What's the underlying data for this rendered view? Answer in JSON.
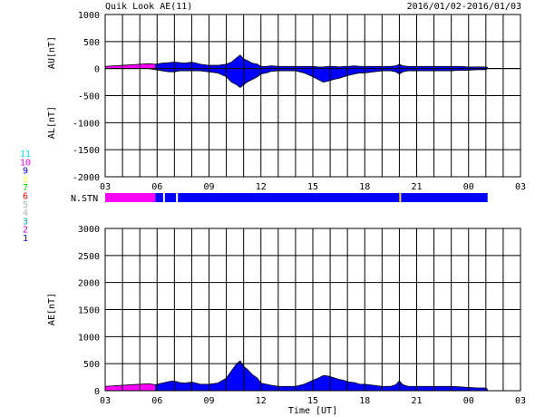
{
  "header": {
    "title": "Quik Look AE(11)",
    "date_range": "2016/01/02-2016/01/03"
  },
  "colors": {
    "magenta": "#ff00ff",
    "blue": "#0000ff",
    "yellow": "#ffd700",
    "white": "#ffffff",
    "black": "#000000"
  },
  "station_legend": [
    {
      "label": "11",
      "color": "#00e5e5"
    },
    {
      "label": "10",
      "color": "#ff00ff"
    },
    {
      "label": "9",
      "color": "#0000ff"
    },
    {
      "label": "8",
      "color": "#ffff66"
    },
    {
      "label": "7",
      "color": "#00dd00"
    },
    {
      "label": "6",
      "color": "#ff0000"
    },
    {
      "label": "5",
      "color": "#b4b4b4"
    },
    {
      "label": "4",
      "color": "#b4b4b4"
    },
    {
      "label": "3",
      "color": "#00aaaa"
    },
    {
      "label": "2",
      "color": "#cc00cc"
    },
    {
      "label": "1",
      "color": "#0000cc"
    }
  ],
  "nstn_label": "N.STN",
  "nstn_segments": [
    {
      "start": 3.0,
      "end": 5.9,
      "color": "#ff00ff"
    },
    {
      "start": 5.9,
      "end": 6.35,
      "color": "#0000ff"
    },
    {
      "start": 6.35,
      "end": 6.45,
      "color": "#ffffff"
    },
    {
      "start": 6.45,
      "end": 7.1,
      "color": "#0000ff"
    },
    {
      "start": 7.1,
      "end": 7.2,
      "color": "#ffffff"
    },
    {
      "start": 7.2,
      "end": 20.0,
      "color": "#0000ff"
    },
    {
      "start": 20.0,
      "end": 20.1,
      "color": "#ffd700"
    },
    {
      "start": 20.1,
      "end": 25.1,
      "color": "#0000ff"
    }
  ],
  "xlabel": "Time [UT]",
  "x_tick_labels": [
    "03",
    "06",
    "09",
    "12",
    "15",
    "18",
    "21",
    "00",
    "03"
  ],
  "chart_data": [
    {
      "type": "area",
      "name": "AU/AL",
      "ylabel_top": "AU[nT]",
      "ylabel_bottom": "AL[nT]",
      "ylim": [
        -2000,
        1000
      ],
      "y_ticks": [
        "1000",
        "500",
        "0",
        "-500",
        "-1000",
        "-1500",
        "-2000"
      ],
      "xlim": [
        3,
        27
      ],
      "data_end": 25.1,
      "grid": true,
      "x": [
        3.0,
        3.5,
        4.0,
        4.5,
        5.0,
        5.5,
        5.9,
        6.3,
        6.7,
        7.0,
        7.3,
        7.6,
        8.0,
        8.5,
        9.0,
        9.5,
        10.0,
        10.3,
        10.6,
        10.8,
        11.0,
        11.2,
        11.5,
        11.8,
        12.0,
        12.3,
        12.6,
        13.0,
        13.5,
        14.0,
        14.5,
        15.0,
        15.3,
        15.6,
        15.9,
        16.2,
        16.5,
        16.8,
        17.1,
        17.4,
        17.7,
        18.0,
        18.5,
        19.0,
        19.5,
        19.8,
        20.0,
        20.2,
        20.5,
        21.0,
        21.5,
        22.0,
        22.5,
        23.0,
        23.5,
        24.0,
        24.5,
        25.0,
        25.1
      ],
      "au": [
        40,
        50,
        60,
        70,
        80,
        90,
        80,
        100,
        110,
        120,
        110,
        100,
        120,
        80,
        60,
        60,
        80,
        120,
        200,
        250,
        180,
        150,
        100,
        80,
        40,
        40,
        50,
        40,
        40,
        40,
        40,
        40,
        30,
        30,
        40,
        40,
        30,
        40,
        40,
        50,
        40,
        40,
        40,
        40,
        40,
        50,
        80,
        50,
        40,
        40,
        40,
        40,
        40,
        40,
        40,
        30,
        30,
        30,
        20
      ],
      "al": [
        0,
        0,
        0,
        0,
        0,
        0,
        -20,
        -40,
        -60,
        -60,
        -40,
        -40,
        -40,
        -40,
        -60,
        -80,
        -150,
        -250,
        -300,
        -350,
        -300,
        -250,
        -200,
        -150,
        -100,
        -80,
        -50,
        -40,
        -40,
        -40,
        -80,
        -150,
        -200,
        -250,
        -230,
        -200,
        -180,
        -150,
        -120,
        -100,
        -80,
        -80,
        -60,
        -40,
        -40,
        -60,
        -100,
        -60,
        -40,
        -40,
        -40,
        -40,
        -40,
        -40,
        -30,
        -30,
        -20,
        -20,
        0
      ]
    },
    {
      "type": "area",
      "name": "AE",
      "ylabel": "AE[nT]",
      "ylim": [
        0,
        3000
      ],
      "y_ticks": [
        "3000",
        "2500",
        "2000",
        "1500",
        "1000",
        "500",
        "0"
      ],
      "xlim": [
        3,
        27
      ],
      "data_end": 25.1,
      "grid": true,
      "x": [
        3.0,
        3.5,
        4.0,
        4.5,
        5.0,
        5.5,
        5.9,
        6.3,
        6.7,
        7.0,
        7.3,
        7.6,
        8.0,
        8.5,
        9.0,
        9.5,
        10.0,
        10.3,
        10.6,
        10.8,
        11.0,
        11.2,
        11.5,
        11.8,
        12.0,
        12.3,
        12.6,
        13.0,
        13.5,
        14.0,
        14.5,
        15.0,
        15.3,
        15.6,
        15.9,
        16.2,
        16.5,
        16.8,
        17.1,
        17.4,
        17.7,
        18.0,
        18.5,
        19.0,
        19.5,
        19.8,
        20.0,
        20.2,
        20.5,
        21.0,
        21.5,
        22.0,
        22.5,
        23.0,
        23.5,
        24.0,
        24.5,
        25.0,
        25.1
      ],
      "ae": [
        80,
        90,
        100,
        110,
        120,
        130,
        110,
        140,
        170,
        180,
        150,
        140,
        160,
        120,
        120,
        140,
        230,
        370,
        500,
        550,
        450,
        400,
        300,
        230,
        140,
        120,
        100,
        80,
        80,
        80,
        120,
        190,
        230,
        280,
        270,
        240,
        210,
        190,
        160,
        150,
        120,
        120,
        100,
        80,
        80,
        110,
        180,
        110,
        80,
        80,
        80,
        80,
        80,
        80,
        70,
        60,
        50,
        50,
        20
      ],
      "magenta_until": 5.9
    }
  ]
}
